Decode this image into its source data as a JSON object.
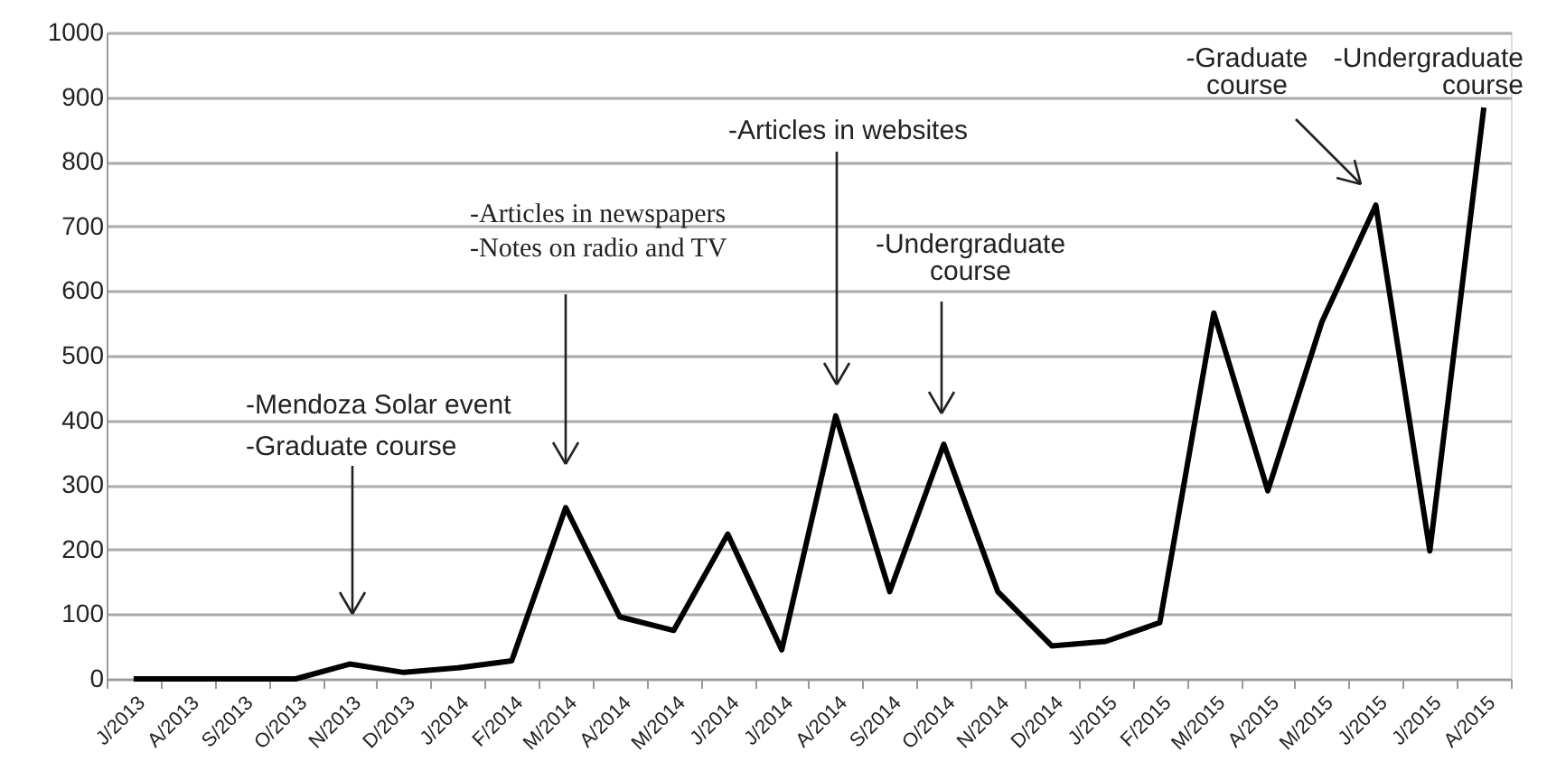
{
  "chart_data": {
    "type": "line",
    "categories": [
      "J/2013",
      "A/2013",
      "S/2013",
      "O/2013",
      "N/2013",
      "D/2013",
      "J/2014",
      "F/2014",
      "M/2014",
      "A/2014",
      "M/2014",
      "J/2014",
      "J/2014",
      "A/2014",
      "S/2014",
      "O/2014",
      "N/2014",
      "D/2014",
      "J/2015",
      "F/2015",
      "M/2015",
      "A/2015",
      "M/2015",
      "J/2015",
      "J/2015",
      "A/2015"
    ],
    "series": [
      {
        "color": "#000000",
        "values": [
          0,
          0,
          0,
          0,
          23,
          10,
          17,
          28,
          265,
          96,
          75,
          224,
          45,
          407,
          135,
          363,
          135,
          51,
          58,
          87,
          566,
          291,
          552,
          733,
          198,
          884
        ]
      }
    ],
    "ylim": [
      0,
      1000
    ],
    "yticks": [
      0,
      100,
      200,
      300,
      400,
      500,
      600,
      700,
      800,
      900,
      1000
    ],
    "grid": "y",
    "marker": "none",
    "line_style": "solid",
    "annotations": [
      "-Mendoza Solar event",
      "-Graduate course",
      "-Articles in newspapers",
      "-Notes on radio and TV",
      "-Articles in websites",
      "-Undergraduate course",
      "-Graduate course",
      "-Undergraduate course"
    ]
  }
}
